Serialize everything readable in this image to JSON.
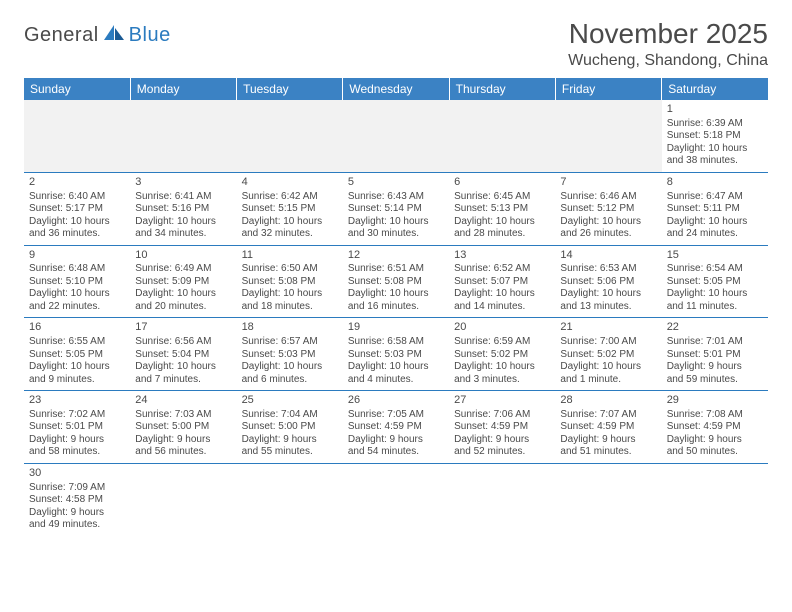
{
  "logo": {
    "general": "General",
    "blue": "Blue"
  },
  "title": "November 2025",
  "location": "Wucheng, Shandong, China",
  "colors": {
    "header_bg": "#3b82c4",
    "header_text": "#ffffff",
    "border": "#2b7bbf",
    "blank_bg": "#f2f2f2",
    "text": "#4a4a4a",
    "logo_blue": "#2b7bbf"
  },
  "typography": {
    "title_fontsize": 28,
    "location_fontsize": 16,
    "header_fontsize": 12,
    "cell_fontsize": 10,
    "logo_fontsize": 20
  },
  "weekdays": [
    "Sunday",
    "Monday",
    "Tuesday",
    "Wednesday",
    "Thursday",
    "Friday",
    "Saturday"
  ],
  "weeks": [
    [
      null,
      null,
      null,
      null,
      null,
      null,
      {
        "day": "1",
        "sunrise": "Sunrise: 6:39 AM",
        "sunset": "Sunset: 5:18 PM",
        "daylight1": "Daylight: 10 hours",
        "daylight2": "and 38 minutes."
      }
    ],
    [
      {
        "day": "2",
        "sunrise": "Sunrise: 6:40 AM",
        "sunset": "Sunset: 5:17 PM",
        "daylight1": "Daylight: 10 hours",
        "daylight2": "and 36 minutes."
      },
      {
        "day": "3",
        "sunrise": "Sunrise: 6:41 AM",
        "sunset": "Sunset: 5:16 PM",
        "daylight1": "Daylight: 10 hours",
        "daylight2": "and 34 minutes."
      },
      {
        "day": "4",
        "sunrise": "Sunrise: 6:42 AM",
        "sunset": "Sunset: 5:15 PM",
        "daylight1": "Daylight: 10 hours",
        "daylight2": "and 32 minutes."
      },
      {
        "day": "5",
        "sunrise": "Sunrise: 6:43 AM",
        "sunset": "Sunset: 5:14 PM",
        "daylight1": "Daylight: 10 hours",
        "daylight2": "and 30 minutes."
      },
      {
        "day": "6",
        "sunrise": "Sunrise: 6:45 AM",
        "sunset": "Sunset: 5:13 PM",
        "daylight1": "Daylight: 10 hours",
        "daylight2": "and 28 minutes."
      },
      {
        "day": "7",
        "sunrise": "Sunrise: 6:46 AM",
        "sunset": "Sunset: 5:12 PM",
        "daylight1": "Daylight: 10 hours",
        "daylight2": "and 26 minutes."
      },
      {
        "day": "8",
        "sunrise": "Sunrise: 6:47 AM",
        "sunset": "Sunset: 5:11 PM",
        "daylight1": "Daylight: 10 hours",
        "daylight2": "and 24 minutes."
      }
    ],
    [
      {
        "day": "9",
        "sunrise": "Sunrise: 6:48 AM",
        "sunset": "Sunset: 5:10 PM",
        "daylight1": "Daylight: 10 hours",
        "daylight2": "and 22 minutes."
      },
      {
        "day": "10",
        "sunrise": "Sunrise: 6:49 AM",
        "sunset": "Sunset: 5:09 PM",
        "daylight1": "Daylight: 10 hours",
        "daylight2": "and 20 minutes."
      },
      {
        "day": "11",
        "sunrise": "Sunrise: 6:50 AM",
        "sunset": "Sunset: 5:08 PM",
        "daylight1": "Daylight: 10 hours",
        "daylight2": "and 18 minutes."
      },
      {
        "day": "12",
        "sunrise": "Sunrise: 6:51 AM",
        "sunset": "Sunset: 5:08 PM",
        "daylight1": "Daylight: 10 hours",
        "daylight2": "and 16 minutes."
      },
      {
        "day": "13",
        "sunrise": "Sunrise: 6:52 AM",
        "sunset": "Sunset: 5:07 PM",
        "daylight1": "Daylight: 10 hours",
        "daylight2": "and 14 minutes."
      },
      {
        "day": "14",
        "sunrise": "Sunrise: 6:53 AM",
        "sunset": "Sunset: 5:06 PM",
        "daylight1": "Daylight: 10 hours",
        "daylight2": "and 13 minutes."
      },
      {
        "day": "15",
        "sunrise": "Sunrise: 6:54 AM",
        "sunset": "Sunset: 5:05 PM",
        "daylight1": "Daylight: 10 hours",
        "daylight2": "and 11 minutes."
      }
    ],
    [
      {
        "day": "16",
        "sunrise": "Sunrise: 6:55 AM",
        "sunset": "Sunset: 5:05 PM",
        "daylight1": "Daylight: 10 hours",
        "daylight2": "and 9 minutes."
      },
      {
        "day": "17",
        "sunrise": "Sunrise: 6:56 AM",
        "sunset": "Sunset: 5:04 PM",
        "daylight1": "Daylight: 10 hours",
        "daylight2": "and 7 minutes."
      },
      {
        "day": "18",
        "sunrise": "Sunrise: 6:57 AM",
        "sunset": "Sunset: 5:03 PM",
        "daylight1": "Daylight: 10 hours",
        "daylight2": "and 6 minutes."
      },
      {
        "day": "19",
        "sunrise": "Sunrise: 6:58 AM",
        "sunset": "Sunset: 5:03 PM",
        "daylight1": "Daylight: 10 hours",
        "daylight2": "and 4 minutes."
      },
      {
        "day": "20",
        "sunrise": "Sunrise: 6:59 AM",
        "sunset": "Sunset: 5:02 PM",
        "daylight1": "Daylight: 10 hours",
        "daylight2": "and 3 minutes."
      },
      {
        "day": "21",
        "sunrise": "Sunrise: 7:00 AM",
        "sunset": "Sunset: 5:02 PM",
        "daylight1": "Daylight: 10 hours",
        "daylight2": "and 1 minute."
      },
      {
        "day": "22",
        "sunrise": "Sunrise: 7:01 AM",
        "sunset": "Sunset: 5:01 PM",
        "daylight1": "Daylight: 9 hours",
        "daylight2": "and 59 minutes."
      }
    ],
    [
      {
        "day": "23",
        "sunrise": "Sunrise: 7:02 AM",
        "sunset": "Sunset: 5:01 PM",
        "daylight1": "Daylight: 9 hours",
        "daylight2": "and 58 minutes."
      },
      {
        "day": "24",
        "sunrise": "Sunrise: 7:03 AM",
        "sunset": "Sunset: 5:00 PM",
        "daylight1": "Daylight: 9 hours",
        "daylight2": "and 56 minutes."
      },
      {
        "day": "25",
        "sunrise": "Sunrise: 7:04 AM",
        "sunset": "Sunset: 5:00 PM",
        "daylight1": "Daylight: 9 hours",
        "daylight2": "and 55 minutes."
      },
      {
        "day": "26",
        "sunrise": "Sunrise: 7:05 AM",
        "sunset": "Sunset: 4:59 PM",
        "daylight1": "Daylight: 9 hours",
        "daylight2": "and 54 minutes."
      },
      {
        "day": "27",
        "sunrise": "Sunrise: 7:06 AM",
        "sunset": "Sunset: 4:59 PM",
        "daylight1": "Daylight: 9 hours",
        "daylight2": "and 52 minutes."
      },
      {
        "day": "28",
        "sunrise": "Sunrise: 7:07 AM",
        "sunset": "Sunset: 4:59 PM",
        "daylight1": "Daylight: 9 hours",
        "daylight2": "and 51 minutes."
      },
      {
        "day": "29",
        "sunrise": "Sunrise: 7:08 AM",
        "sunset": "Sunset: 4:59 PM",
        "daylight1": "Daylight: 9 hours",
        "daylight2": "and 50 minutes."
      }
    ],
    [
      {
        "day": "30",
        "sunrise": "Sunrise: 7:09 AM",
        "sunset": "Sunset: 4:58 PM",
        "daylight1": "Daylight: 9 hours",
        "daylight2": "and 49 minutes."
      },
      null,
      null,
      null,
      null,
      null,
      null
    ]
  ]
}
